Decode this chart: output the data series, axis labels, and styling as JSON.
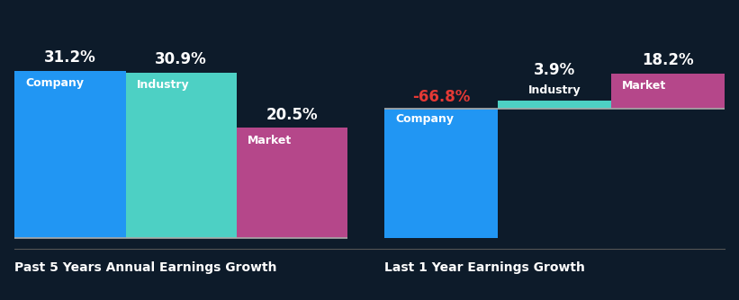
{
  "background_color": "#0d1b2a",
  "left_chart": {
    "title": "Past 5 Years Annual Earnings Growth",
    "bars": [
      {
        "label": "Company",
        "value": 31.2,
        "color": "#2196f3"
      },
      {
        "label": "Industry",
        "value": 30.9,
        "color": "#4dd0c4"
      },
      {
        "label": "Market",
        "value": 20.5,
        "color": "#b5478a"
      }
    ]
  },
  "right_chart": {
    "title": "Last 1 Year Earnings Growth",
    "bars": [
      {
        "label": "Company",
        "value": -66.8,
        "color": "#2196f3"
      },
      {
        "label": "Industry",
        "value": 3.9,
        "color": "#4dd0c4"
      },
      {
        "label": "Market",
        "value": 18.2,
        "color": "#b5478a"
      }
    ]
  },
  "title_color": "#ffffff",
  "label_color": "#ffffff",
  "value_color_positive": "#ffffff",
  "value_color_negative": "#e53935",
  "divider_color": "#aaaaaa",
  "bottom_line_color": "#555555",
  "title_fontsize": 10,
  "label_fontsize": 9,
  "value_fontsize": 12
}
